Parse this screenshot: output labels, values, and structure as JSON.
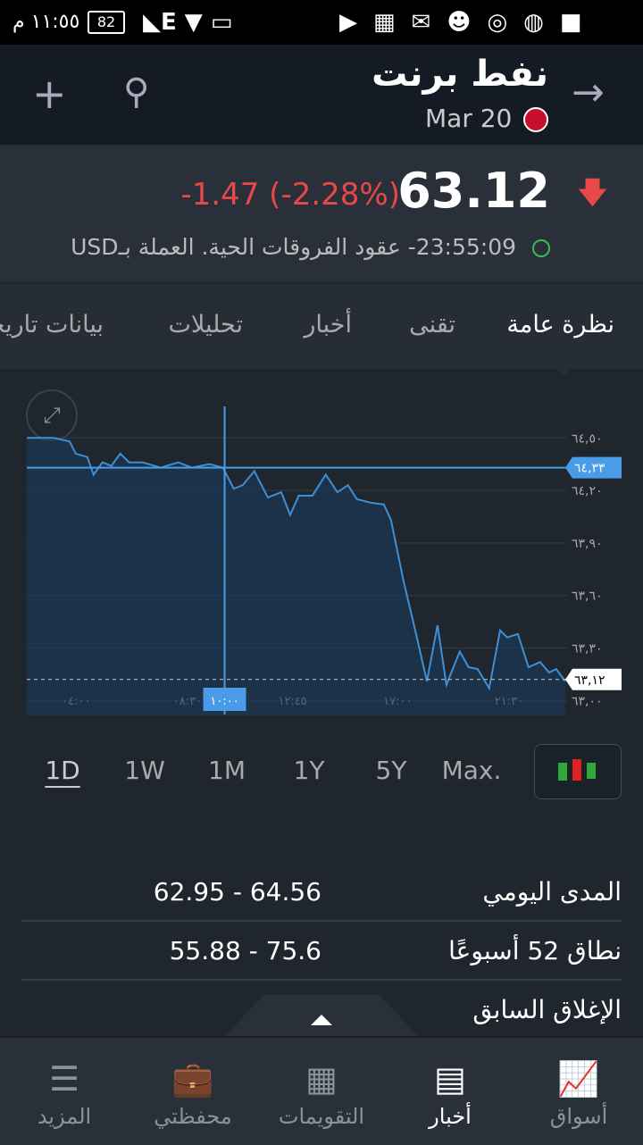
{
  "status_bar": {
    "time": "١١:٥٥ م",
    "battery": "82"
  },
  "header": {
    "title": "نفط برنت",
    "subtitle": "Mar 20"
  },
  "quote": {
    "price": "63.12",
    "change": "-1.47 (-2.28%)",
    "time": "23:55:09",
    "info": "- عقود الفروقات الحية. العملة بـUSD"
  },
  "tabs": [
    "نظرة عامة",
    "تقنى",
    "أخبار",
    "تحليلات",
    "بيانات تاريخية"
  ],
  "chart_data": {
    "type": "line",
    "color": "#3d8fd6",
    "x": [
      2.0,
      3.08,
      3.73,
      3.98,
      4.45,
      4.7,
      5.06,
      5.42,
      5.78,
      6.14,
      6.69,
      7.41,
      8.13,
      8.67,
      9.39,
      9.93,
      10.37,
      10.73,
      11.2,
      11.75,
      12.29,
      12.65,
      13.0,
      13.55,
      14.09,
      14.56,
      14.99,
      15.35,
      15.9,
      16.44,
      16.73,
      17.24,
      17.71,
      18.18,
      18.61,
      18.97,
      19.51,
      19.87,
      20.23,
      20.7,
      21.14,
      21.43,
      21.86,
      22.29,
      22.76,
      23.12,
      23.41,
      23.77
    ],
    "values": [
      64.5,
      64.5,
      64.48,
      64.41,
      64.39,
      64.29,
      64.36,
      64.34,
      64.41,
      64.36,
      64.36,
      64.33,
      64.36,
      64.33,
      64.35,
      64.33,
      64.21,
      64.23,
      64.31,
      64.16,
      64.19,
      64.06,
      64.17,
      64.17,
      64.29,
      64.19,
      64.23,
      64.15,
      64.13,
      64.12,
      64.03,
      63.68,
      63.4,
      63.11,
      63.43,
      63.09,
      63.28,
      63.19,
      63.18,
      63.07,
      63.4,
      63.36,
      63.38,
      63.19,
      63.22,
      63.16,
      63.18,
      63.11
    ],
    "xlim": [
      2,
      23.85
    ],
    "ylim": [
      62.92,
      64.68
    ],
    "yticks": [
      {
        "value": 64.5,
        "label": "٦٤,٥٠"
      },
      {
        "value": 64.2,
        "label": "٦٤,٢٠"
      },
      {
        "value": 63.9,
        "label": "٦٣,٩٠"
      },
      {
        "value": 63.6,
        "label": "٦٣,٦٠"
      },
      {
        "value": 63.3,
        "label": "٦٣,٣٠"
      },
      {
        "value": 63.0,
        "label": "٦٣,٠٠"
      }
    ],
    "xticks": [
      {
        "value": 4,
        "label": "٠٤:٠٠"
      },
      {
        "value": 8.5,
        "label": "٠٨:٣٠"
      },
      {
        "value": 12.75,
        "label": "١٢:٤٥"
      },
      {
        "value": 17,
        "label": "١٧:٠٠"
      },
      {
        "value": 21.5,
        "label": "٢١:٣٠"
      }
    ],
    "crosshair_x": {
      "value": 10,
      "label": "١٠:٠٠"
    },
    "crosshair_y": {
      "value": 64.33,
      "label": "٦٤,٣٣"
    },
    "last_price": {
      "value": 63.12,
      "label": "٦٣,١٢"
    },
    "grid": true
  },
  "ranges": [
    "1D",
    "1W",
    "1M",
    "1Y",
    "5Y",
    "Max."
  ],
  "stats": [
    {
      "label": "المدى اليومي",
      "value": "62.95 - 64.56"
    },
    {
      "label": "نطاق 52 أسبوعًا",
      "value": "55.88 - 75.6"
    },
    {
      "label": "الإغلاق السابق"
    }
  ],
  "nav": [
    "أسواق",
    "أخبار",
    "التقويمات",
    "محفظتي",
    "المزيد"
  ]
}
